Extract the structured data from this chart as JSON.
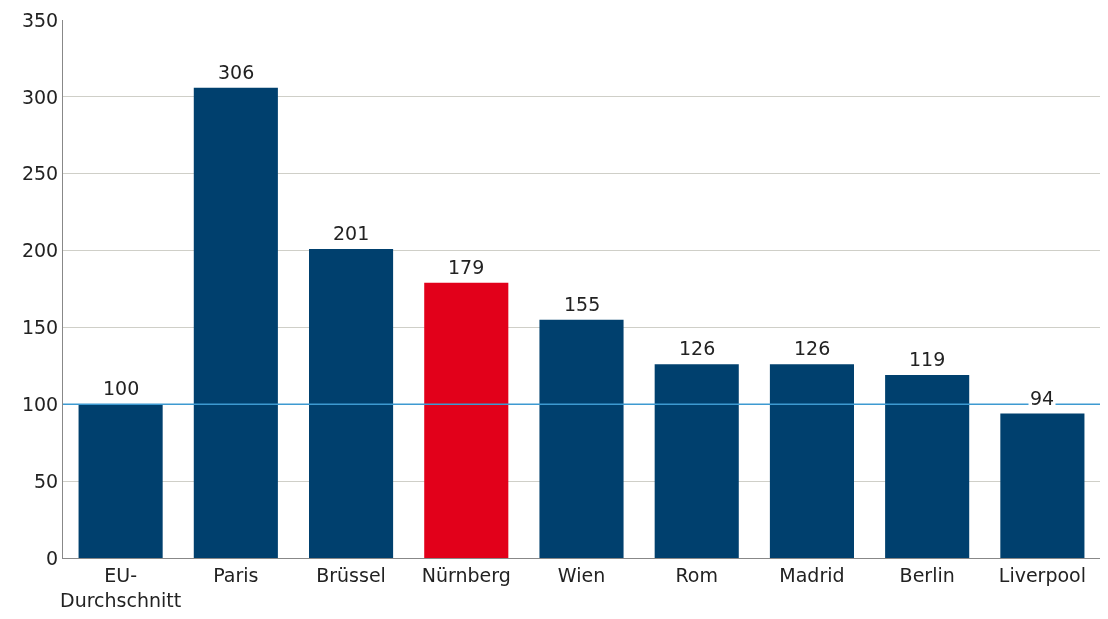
{
  "chart_data": {
    "type": "bar",
    "categories": [
      "EU-Durchschnitt",
      "Paris",
      "Brüssel",
      "Nürnberg",
      "Wien",
      "Rom",
      "Madrid",
      "Berlin",
      "Liverpool"
    ],
    "values": [
      100,
      306,
      201,
      179,
      155,
      126,
      126,
      119,
      94
    ],
    "colors": [
      "#00406e",
      "#00406e",
      "#00406e",
      "#e2001a",
      "#00406e",
      "#00406e",
      "#00406e",
      "#00406e",
      "#00406e"
    ],
    "ylim": [
      0,
      350
    ],
    "yticks": [
      0,
      50,
      100,
      150,
      200,
      250,
      300,
      350
    ],
    "grid": "y",
    "data_labels": true,
    "ref_lines": [
      {
        "axis": "y",
        "value": 100,
        "color": "#3d9ad1"
      }
    ]
  }
}
